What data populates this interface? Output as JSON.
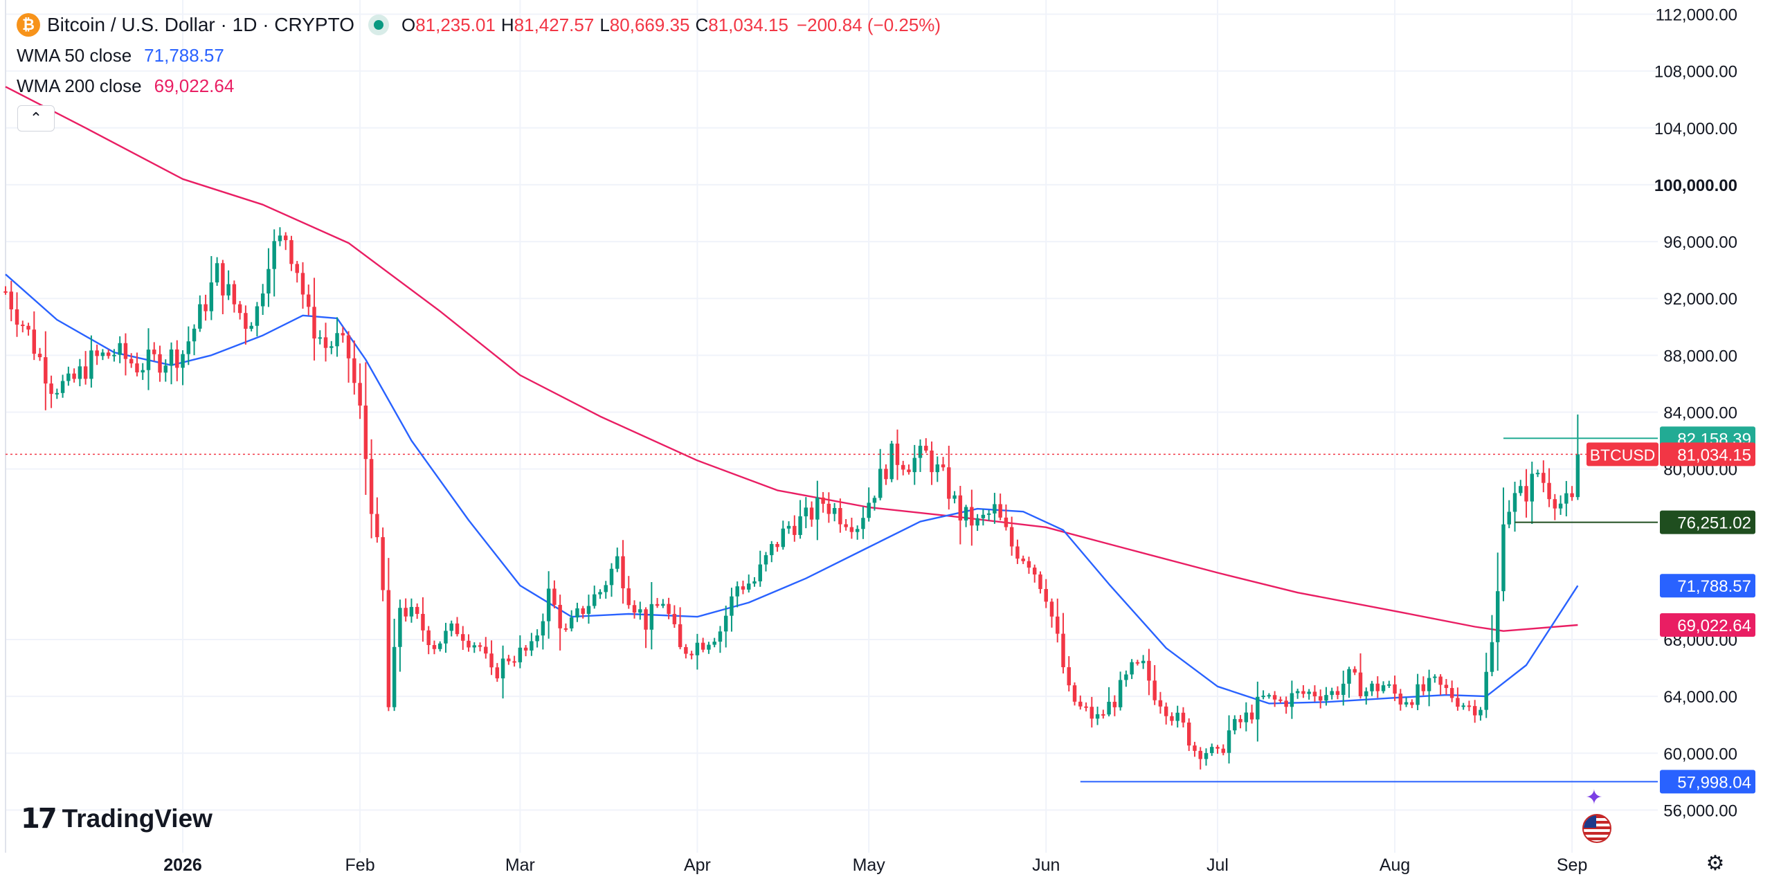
{
  "header": {
    "symbol_icon": "bitcoin-icon",
    "title": "Bitcoin / U.S. Dollar · 1D · CRYPTO",
    "ohlc": {
      "o_label": "O",
      "o": "81,235.01",
      "h_label": "H",
      "h": "81,427.57",
      "l_label": "L",
      "l": "80,669.35",
      "c_label": "C",
      "c": "81,034.15",
      "change": "−200.84 (−0.25%)"
    }
  },
  "indicators": [
    {
      "label": "WMA 50 close",
      "value": "71,788.57",
      "color": "#2962ff"
    },
    {
      "label": "WMA 200 close",
      "value": "69,022.64",
      "color": "#e91e63"
    }
  ],
  "collapse_icon": "chevron-up-icon",
  "branding": {
    "logo_mark": "17",
    "logo_text": "TradingView"
  },
  "icons": {
    "assistant": "sparkle-icon",
    "region": "us-flag-icon",
    "settings": "gear-icon"
  },
  "colors": {
    "up": "#089981",
    "down": "#f23645",
    "wma50": "#2962ff",
    "wma200": "#e91e63",
    "grid": "#f0f3fa"
  },
  "chart_data": {
    "type": "candlestick",
    "y_range": [
      53000,
      113000
    ],
    "x_range": [
      "2025-12-01",
      "2026-09-16"
    ],
    "y_ticks": [
      "112,000.00",
      "108,000.00",
      "104,000.00",
      "100,000.00",
      "96,000.00",
      "92,000.00",
      "88,000.00",
      "84,000.00",
      "80,000.00",
      "68,000.00",
      "64,000.00",
      "60,000.00",
      "56,000.00"
    ],
    "y_tick_values": [
      112000,
      108000,
      104000,
      100000,
      96000,
      92000,
      88000,
      84000,
      80000,
      68000,
      64000,
      60000,
      56000
    ],
    "x_ticks": [
      {
        "label": "2026",
        "date": "2026-01-01",
        "bold": true
      },
      {
        "label": "Feb",
        "date": "2026-02-01",
        "bold": false
      },
      {
        "label": "Mar",
        "date": "2026-03-01",
        "bold": false
      },
      {
        "label": "Apr",
        "date": "2026-04-01",
        "bold": false
      },
      {
        "label": "May",
        "date": "2026-05-01",
        "bold": false
      },
      {
        "label": "Jun",
        "date": "2026-06-01",
        "bold": false
      },
      {
        "label": "Jul",
        "date": "2026-07-01",
        "bold": false
      },
      {
        "label": "Aug",
        "date": "2026-08-01",
        "bold": false
      },
      {
        "label": "Sep",
        "date": "2026-09-01",
        "bold": false
      }
    ],
    "close_path": [
      [
        "2025-12-01",
        92500
      ],
      [
        "2025-12-05",
        89500
      ],
      [
        "2025-12-09",
        86000
      ],
      [
        "2025-12-12",
        85800
      ],
      [
        "2025-12-16",
        87600
      ],
      [
        "2025-12-20",
        88200
      ],
      [
        "2025-12-24",
        87300
      ],
      [
        "2025-12-28",
        87700
      ],
      [
        "2026-01-01",
        88200
      ],
      [
        "2026-01-04",
        90800
      ],
      [
        "2026-01-07",
        93800
      ],
      [
        "2026-01-10",
        91600
      ],
      [
        "2026-01-12",
        90400
      ],
      [
        "2026-01-14",
        91200
      ],
      [
        "2026-01-16",
        95100
      ],
      [
        "2026-01-19",
        96400
      ],
      [
        "2026-01-21",
        94200
      ],
      [
        "2026-01-23",
        90600
      ],
      [
        "2026-01-26",
        88600
      ],
      [
        "2026-01-28",
        89000
      ],
      [
        "2026-01-30",
        87900
      ],
      [
        "2026-02-01",
        84000
      ],
      [
        "2026-02-03",
        77600
      ],
      [
        "2026-02-05",
        71200
      ],
      [
        "2026-02-06",
        63200
      ],
      [
        "2026-02-08",
        70400
      ],
      [
        "2026-02-11",
        69300
      ],
      [
        "2026-02-14",
        67700
      ],
      [
        "2026-02-18",
        68800
      ],
      [
        "2026-02-22",
        67500
      ],
      [
        "2026-02-24",
        65400
      ],
      [
        "2026-02-27",
        66800
      ],
      [
        "2026-03-03",
        67200
      ],
      [
        "2026-03-06",
        71200
      ],
      [
        "2026-03-09",
        68400
      ],
      [
        "2026-03-12",
        70200
      ],
      [
        "2026-03-15",
        71400
      ],
      [
        "2026-03-18",
        73600
      ],
      [
        "2026-03-20",
        71200
      ],
      [
        "2026-03-23",
        69200
      ],
      [
        "2026-03-26",
        70800
      ],
      [
        "2026-03-29",
        67200
      ],
      [
        "2026-04-02",
        67900
      ],
      [
        "2026-04-05",
        68700
      ],
      [
        "2026-04-08",
        71800
      ],
      [
        "2026-04-11",
        72100
      ],
      [
        "2026-04-14",
        74300
      ],
      [
        "2026-04-17",
        76000
      ],
      [
        "2026-04-20",
        76500
      ],
      [
        "2026-04-23",
        77700
      ],
      [
        "2026-04-26",
        76800
      ],
      [
        "2026-04-29",
        76200
      ],
      [
        "2026-05-02",
        78600
      ],
      [
        "2026-05-05",
        80900
      ],
      [
        "2026-05-08",
        80500
      ],
      [
        "2026-05-11",
        81000
      ],
      [
        "2026-05-14",
        79300
      ],
      [
        "2026-05-17",
        76800
      ],
      [
        "2026-05-20",
        76100
      ],
      [
        "2026-05-23",
        77100
      ],
      [
        "2026-05-26",
        74600
      ],
      [
        "2026-05-29",
        73600
      ],
      [
        "2026-06-01",
        71300
      ],
      [
        "2026-06-03",
        67900
      ],
      [
        "2026-06-05",
        64200
      ],
      [
        "2026-06-07",
        63100
      ],
      [
        "2026-06-10",
        62400
      ],
      [
        "2026-06-13",
        63800
      ],
      [
        "2026-06-16",
        65800
      ],
      [
        "2026-06-18",
        66000
      ],
      [
        "2026-06-20",
        64300
      ],
      [
        "2026-06-22",
        63300
      ],
      [
        "2026-06-25",
        61800
      ],
      [
        "2026-06-27",
        60300
      ],
      [
        "2026-06-29",
        60200
      ],
      [
        "2026-07-01",
        59700
      ],
      [
        "2026-07-03",
        61500
      ],
      [
        "2026-07-06",
        62500
      ],
      [
        "2026-07-09",
        63800
      ],
      [
        "2026-07-12",
        63600
      ],
      [
        "2026-07-15",
        64100
      ],
      [
        "2026-07-18",
        64300
      ],
      [
        "2026-07-21",
        64200
      ],
      [
        "2026-07-24",
        65300
      ],
      [
        "2026-07-27",
        64400
      ],
      [
        "2026-07-30",
        64800
      ],
      [
        "2026-08-02",
        63800
      ],
      [
        "2026-08-05",
        64200
      ],
      [
        "2026-08-08",
        64800
      ],
      [
        "2026-08-11",
        64100
      ],
      [
        "2026-08-14",
        63300
      ],
      [
        "2026-08-16",
        63400
      ],
      [
        "2026-08-18",
        67600
      ],
      [
        "2026-08-19",
        71200
      ],
      [
        "2026-08-20",
        76900
      ],
      [
        "2026-08-22",
        77900
      ],
      [
        "2026-08-24",
        78400
      ],
      [
        "2026-08-26",
        79800
      ],
      [
        "2026-08-28",
        78500
      ],
      [
        "2026-08-30",
        77600
      ],
      [
        "2026-09-01",
        77500
      ],
      [
        "2026-09-02",
        81034
      ]
    ],
    "wma50": [
      [
        "2025-12-01",
        93700
      ],
      [
        "2025-12-10",
        90500
      ],
      [
        "2025-12-20",
        88200
      ],
      [
        "2025-12-30",
        87300
      ],
      [
        "2026-01-06",
        88000
      ],
      [
        "2026-01-15",
        89400
      ],
      [
        "2026-01-22",
        90800
      ],
      [
        "2026-01-28",
        90600
      ],
      [
        "2026-02-02",
        87700
      ],
      [
        "2026-02-10",
        82000
      ],
      [
        "2026-02-20",
        76400
      ],
      [
        "2026-03-01",
        71800
      ],
      [
        "2026-03-10",
        69600
      ],
      [
        "2026-03-20",
        69800
      ],
      [
        "2026-04-01",
        69600
      ],
      [
        "2026-04-10",
        70600
      ],
      [
        "2026-04-20",
        72300
      ],
      [
        "2026-05-01",
        74500
      ],
      [
        "2026-05-10",
        76300
      ],
      [
        "2026-05-20",
        77200
      ],
      [
        "2026-05-28",
        77000
      ],
      [
        "2026-06-04",
        75700
      ],
      [
        "2026-06-12",
        71900
      ],
      [
        "2026-06-22",
        67400
      ],
      [
        "2026-07-01",
        64700
      ],
      [
        "2026-07-10",
        63500
      ],
      [
        "2026-07-20",
        63600
      ],
      [
        "2026-08-01",
        63900
      ],
      [
        "2026-08-10",
        64100
      ],
      [
        "2026-08-17",
        64000
      ],
      [
        "2026-08-24",
        66200
      ],
      [
        "2026-09-02",
        71789
      ]
    ],
    "wma200": [
      [
        "2025-12-01",
        106900
      ],
      [
        "2025-12-15",
        104000
      ],
      [
        "2026-01-01",
        100400
      ],
      [
        "2026-01-15",
        98600
      ],
      [
        "2026-01-30",
        95900
      ],
      [
        "2026-02-15",
        91100
      ],
      [
        "2026-03-01",
        86600
      ],
      [
        "2026-03-15",
        83700
      ],
      [
        "2026-04-01",
        80600
      ],
      [
        "2026-04-15",
        78500
      ],
      [
        "2026-05-01",
        77300
      ],
      [
        "2026-05-15",
        76700
      ],
      [
        "2026-06-01",
        75900
      ],
      [
        "2026-06-15",
        74400
      ],
      [
        "2026-07-01",
        72700
      ],
      [
        "2026-07-15",
        71300
      ],
      [
        "2026-08-01",
        70000
      ],
      [
        "2026-08-15",
        68900
      ],
      [
        "2026-08-20",
        68600
      ],
      [
        "2026-09-02",
        69023
      ]
    ],
    "wma50_label": "71,788.57",
    "wma200_label": "69,022.64",
    "last_price": {
      "value": 81034.15,
      "label": "81,034.15",
      "symbol": "BTCUSD"
    },
    "horizontal_lines": [
      {
        "value": 82158.39,
        "label": "82,158.39",
        "color": "#22ab94",
        "from": "2026-08-20",
        "to": "2026-09-16"
      },
      {
        "value": 76251.02,
        "label": "76,251.02",
        "color": "#1f4e1f",
        "from": "2026-08-22",
        "to": "2026-09-16"
      },
      {
        "value": 57998.04,
        "label": "57,998.04",
        "color": "#2962ff",
        "from": "2026-06-07",
        "to": "2026-09-16"
      }
    ]
  }
}
